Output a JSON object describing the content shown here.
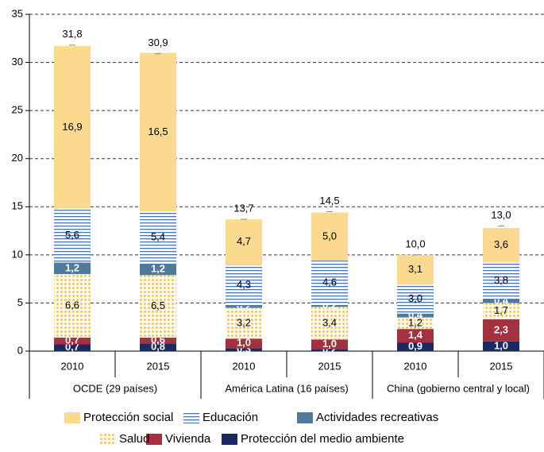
{
  "chart_data": {
    "type": "stacked_bar",
    "categories": [
      "2010",
      "2015",
      "2010",
      "2015",
      "2010",
      "2015"
    ],
    "groups": [
      "OCDE (29 países)",
      "América Latina (16 países)",
      "China (gobierno central y local)"
    ],
    "series": [
      {
        "name": "Protección del medio ambiente",
        "color": "#1b2a63",
        "values": [
          0.7,
          0.8,
          0.3,
          0.2,
          0.9,
          1.0
        ],
        "value_labels": [
          "0,7",
          "0,8",
          "0,3",
          "0,2",
          "0,9",
          "1,0"
        ]
      },
      {
        "name": "Vivienda",
        "color": "#a5303f",
        "values": [
          0.7,
          0.6,
          1.0,
          1.0,
          1.4,
          2.3
        ],
        "value_labels": [
          "0,7",
          "0,6",
          "1,0",
          "1,0",
          "1,4",
          "2,3"
        ]
      },
      {
        "name": "Salud",
        "color": "#f5b731",
        "values": [
          6.6,
          6.5,
          3.2,
          3.4,
          1.2,
          1.7
        ],
        "value_labels": [
          "6,6",
          "6,5",
          "3,2",
          "3,4",
          "1,2",
          "1,7"
        ]
      },
      {
        "name": "Actividades recreativas",
        "color": "#4f7a99",
        "values": [
          1.2,
          1.2,
          0.2,
          0.2,
          0.4,
          0.4
        ],
        "value_labels": [
          "1,2",
          "1,2",
          "0,2",
          "0,2",
          "0,4",
          "0,4"
        ]
      },
      {
        "name": "Educación",
        "color": "#4a6fb5",
        "values": [
          5.6,
          5.4,
          4.3,
          4.6,
          3.0,
          3.8
        ],
        "value_labels": [
          "5,6",
          "5,4",
          "4,3",
          "4,6",
          "3,0",
          "3,8"
        ]
      },
      {
        "name": "Protección social",
        "color": "#fbd98f",
        "values": [
          16.9,
          16.5,
          4.7,
          5.0,
          3.1,
          3.6
        ],
        "value_labels": [
          "16,9",
          "16,5",
          "4,7",
          "5,0",
          "3,1",
          "3,6"
        ]
      }
    ],
    "totals": {
      "values": [
        31.8,
        30.9,
        13.7,
        14.5,
        10.0,
        13.0
      ],
      "value_labels": [
        "31,8",
        "30,9",
        "13,7",
        "14,5",
        "10,0",
        "13,0"
      ]
    },
    "ylim": [
      0,
      35
    ],
    "yticks": [
      0,
      5,
      10,
      15,
      20,
      25,
      30,
      35
    ],
    "grid": true
  }
}
